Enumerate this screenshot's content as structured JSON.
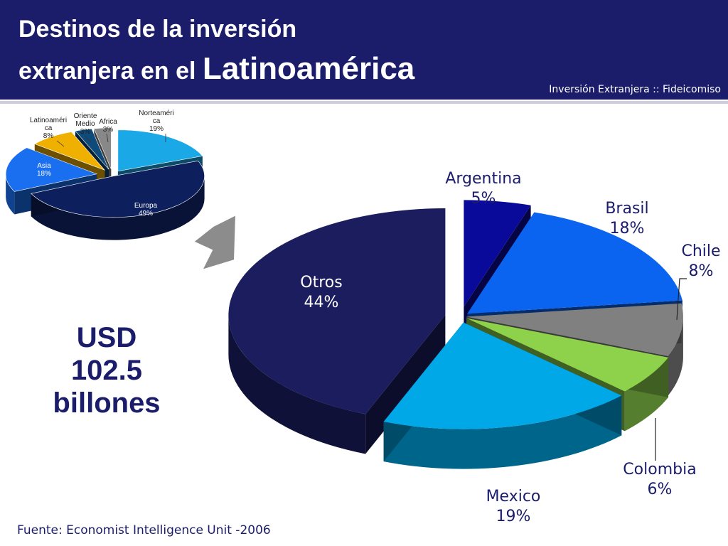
{
  "header": {
    "title_line1": "Destinos de la inversión",
    "title_line2_prefix": "extranjera en el",
    "title_line2_big": "Latinoamérica",
    "subtitle": "Inversión Extranjera :: Fideicomiso"
  },
  "total": {
    "line1": "USD",
    "line2": "102.5",
    "line3": "billones"
  },
  "source": "Fuente: Economist Intelligence Unit -2006",
  "chart_data": [
    {
      "type": "pie",
      "title": "",
      "slices": [
        {
          "label": "Norteaméri ca",
          "label_lines": [
            "Norteaméri",
            "ca"
          ],
          "pct_text": "19%",
          "value": 19,
          "color": "#1aa9e6"
        },
        {
          "label": "Europa",
          "label_lines": [
            "Europa"
          ],
          "pct_text": "49%",
          "value": 49,
          "color": "#0d1f5c"
        },
        {
          "label": "Asia",
          "label_lines": [
            "Asia"
          ],
          "pct_text": "18%",
          "value": 18,
          "color": "#1a6ef0"
        },
        {
          "label": "Latinoaméri ca",
          "label_lines": [
            "Latinoaméri",
            "ca"
          ],
          "pct_text": "8%",
          "value": 8,
          "color": "#f0b000"
        },
        {
          "label": "Oriente Medio",
          "label_lines": [
            "Oriente",
            "Medio"
          ],
          "pct_text": "3%",
          "value": 3,
          "color": "#0e4a7a"
        },
        {
          "label": "Africa",
          "label_lines": [
            "Africa"
          ],
          "pct_text": "3%",
          "value": 3,
          "color": "#888888"
        }
      ]
    },
    {
      "type": "pie",
      "title": "",
      "slices": [
        {
          "label": "Argentina",
          "pct_text": "5%",
          "value": 5,
          "color": "#0a0a9a"
        },
        {
          "label": "Brasil",
          "pct_text": "18%",
          "value": 18,
          "color": "#0a64f0"
        },
        {
          "label": "Chile",
          "pct_text": "8%",
          "value": 8,
          "color": "#808080"
        },
        {
          "label": "Colombia",
          "pct_text": "6%",
          "value": 6,
          "color": "#8ed24c"
        },
        {
          "label": "Mexico",
          "pct_text": "19%",
          "value": 19,
          "color": "#00a8e8"
        },
        {
          "label": "Otros",
          "pct_text": "44%",
          "value": 44,
          "color": "#1b1d5e"
        }
      ]
    }
  ]
}
